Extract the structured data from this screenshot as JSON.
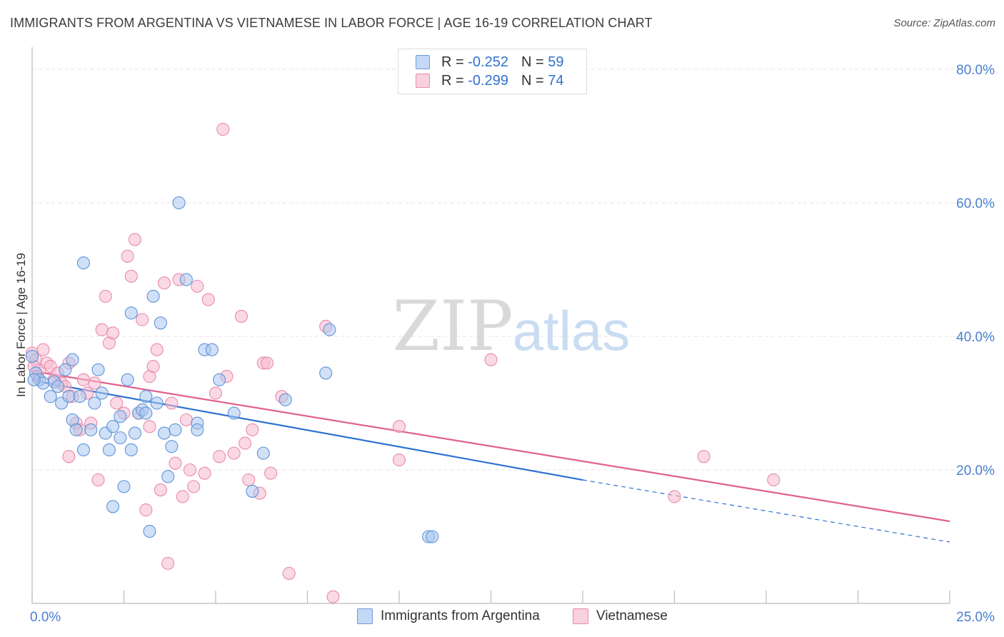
{
  "title": "IMMIGRANTS FROM ARGENTINA VS VIETNAMESE IN LABOR FORCE | AGE 16-19 CORRELATION CHART",
  "source": "Source: ZipAtlas.com",
  "watermark": {
    "zip": "ZIP",
    "atlas": "atlas"
  },
  "legend": {
    "argentina": {
      "r_label": "R =",
      "r_value": "-0.252",
      "n_label": "N =",
      "n_value": "59"
    },
    "vietnamese": {
      "r_label": "R =",
      "r_value": "-0.299",
      "n_label": "N =",
      "n_value": "74"
    }
  },
  "colors": {
    "argentina_fill": "#a9c7ee",
    "argentina_stroke": "#5f93d8",
    "argentina_line": "#2e72d2",
    "vietnamese_fill": "#f5b9cf",
    "vietnamese_stroke": "#e98aab",
    "vietnamese_line": "#e0608f",
    "axis_label": "#4a7fd0",
    "grid": "#e3e3e3"
  },
  "chart_data": {
    "type": "scatter",
    "title": "IMMIGRANTS FROM ARGENTINA VS VIETNAMESE IN LABOR FORCE | AGE 16-19 CORRELATION CHART",
    "xlabel": "",
    "ylabel": "In Labor Force | Age 16-19",
    "xlim": [
      0,
      25
    ],
    "ylim": [
      0,
      83
    ],
    "x_tick_labels": [
      "0.0%",
      "25.0%"
    ],
    "y_ticks": [
      20,
      40,
      60,
      80
    ],
    "y_tick_labels": [
      "20.0%",
      "40.0%",
      "60.0%",
      "80.0%"
    ],
    "grid": true,
    "legend_position": "bottom",
    "series": [
      {
        "name": "Immigrants from Argentina",
        "r": -0.252,
        "n": 59,
        "trend": {
          "x0": 0,
          "y0": 33.4,
          "x1": 15,
          "y1": 18.5,
          "dashed_to_x": 25,
          "dashed_to_y": 9.2
        },
        "points": [
          [
            0.1,
            34.5
          ],
          [
            0.2,
            33.5
          ],
          [
            0.3,
            33.0
          ],
          [
            0.5,
            31.0
          ],
          [
            0.6,
            33.2
          ],
          [
            0.7,
            32.5
          ],
          [
            0.8,
            30.0
          ],
          [
            0.9,
            35.0
          ],
          [
            1.0,
            31.0
          ],
          [
            1.1,
            36.5
          ],
          [
            1.1,
            27.5
          ],
          [
            1.2,
            26.0
          ],
          [
            1.3,
            31.0
          ],
          [
            1.4,
            23.0
          ],
          [
            1.4,
            51.0
          ],
          [
            1.6,
            26.0
          ],
          [
            1.7,
            30.0
          ],
          [
            1.8,
            35.0
          ],
          [
            1.9,
            31.5
          ],
          [
            2.0,
            25.5
          ],
          [
            2.1,
            23.0
          ],
          [
            2.2,
            26.5
          ],
          [
            2.2,
            14.5
          ],
          [
            2.4,
            24.8
          ],
          [
            2.4,
            28.0
          ],
          [
            2.5,
            17.5
          ],
          [
            2.6,
            33.5
          ],
          [
            2.7,
            23.0
          ],
          [
            2.7,
            43.5
          ],
          [
            2.8,
            25.5
          ],
          [
            2.9,
            28.5
          ],
          [
            3.0,
            29.0
          ],
          [
            3.1,
            31.0
          ],
          [
            3.1,
            28.5
          ],
          [
            3.2,
            10.8
          ],
          [
            3.3,
            46.0
          ],
          [
            3.4,
            30.0
          ],
          [
            3.5,
            42.0
          ],
          [
            3.6,
            25.5
          ],
          [
            3.7,
            19.0
          ],
          [
            3.8,
            23.5
          ],
          [
            3.9,
            26.0
          ],
          [
            4.0,
            60.0
          ],
          [
            4.2,
            48.5
          ],
          [
            4.5,
            27.0
          ],
          [
            4.5,
            26.0
          ],
          [
            4.7,
            38.0
          ],
          [
            4.9,
            38.0
          ],
          [
            5.1,
            33.5
          ],
          [
            5.5,
            28.5
          ],
          [
            6.0,
            16.8
          ],
          [
            6.3,
            22.5
          ],
          [
            6.9,
            30.5
          ],
          [
            8.0,
            34.5
          ],
          [
            8.1,
            41.0
          ],
          [
            10.8,
            10.0
          ],
          [
            10.9,
            10.0
          ],
          [
            0.0,
            37.0
          ],
          [
            0.05,
            33.5
          ]
        ]
      },
      {
        "name": "Vietnamese",
        "r": -0.299,
        "n": 74,
        "trend": {
          "x0": 0,
          "y0": 34.8,
          "x1": 25,
          "y1": 12.3
        },
        "points": [
          [
            0.0,
            37.5
          ],
          [
            0.1,
            36.5
          ],
          [
            0.2,
            35.0
          ],
          [
            0.3,
            38.0
          ],
          [
            0.4,
            36.0
          ],
          [
            0.5,
            35.5
          ],
          [
            0.6,
            33.5
          ],
          [
            0.7,
            34.5
          ],
          [
            0.8,
            33.0
          ],
          [
            0.9,
            32.5
          ],
          [
            1.0,
            22.0
          ],
          [
            1.0,
            36.0
          ],
          [
            1.1,
            31.0
          ],
          [
            1.2,
            27.0
          ],
          [
            1.3,
            26.0
          ],
          [
            1.4,
            33.5
          ],
          [
            1.5,
            31.5
          ],
          [
            1.6,
            27.0
          ],
          [
            1.7,
            33.0
          ],
          [
            1.8,
            18.5
          ],
          [
            1.9,
            41.0
          ],
          [
            2.0,
            46.0
          ],
          [
            2.1,
            39.0
          ],
          [
            2.2,
            40.5
          ],
          [
            2.3,
            30.0
          ],
          [
            2.5,
            28.5
          ],
          [
            2.6,
            52.0
          ],
          [
            2.7,
            49.0
          ],
          [
            2.8,
            54.5
          ],
          [
            2.9,
            28.5
          ],
          [
            3.0,
            42.5
          ],
          [
            3.1,
            14.0
          ],
          [
            3.2,
            26.5
          ],
          [
            3.2,
            34.0
          ],
          [
            3.3,
            35.5
          ],
          [
            3.4,
            38.0
          ],
          [
            3.5,
            17.0
          ],
          [
            3.6,
            48.0
          ],
          [
            3.7,
            6.0
          ],
          [
            3.8,
            30.0
          ],
          [
            3.9,
            21.0
          ],
          [
            4.0,
            48.5
          ],
          [
            4.1,
            16.0
          ],
          [
            4.2,
            27.5
          ],
          [
            4.3,
            20.0
          ],
          [
            4.4,
            17.5
          ],
          [
            4.5,
            47.5
          ],
          [
            4.7,
            19.5
          ],
          [
            4.8,
            45.5
          ],
          [
            5.0,
            31.5
          ],
          [
            5.1,
            22.0
          ],
          [
            5.2,
            71.0
          ],
          [
            5.3,
            34.0
          ],
          [
            5.5,
            22.5
          ],
          [
            5.7,
            43.0
          ],
          [
            5.8,
            24.0
          ],
          [
            5.9,
            18.5
          ],
          [
            6.0,
            26.0
          ],
          [
            6.2,
            16.5
          ],
          [
            6.3,
            36.0
          ],
          [
            6.4,
            36.0
          ],
          [
            6.5,
            19.5
          ],
          [
            6.8,
            31.0
          ],
          [
            7.0,
            4.5
          ],
          [
            8.0,
            41.5
          ],
          [
            8.2,
            1.0
          ],
          [
            10.0,
            26.5
          ],
          [
            10.0,
            21.5
          ],
          [
            12.5,
            36.5
          ],
          [
            17.5,
            16.0
          ],
          [
            18.3,
            22.0
          ],
          [
            20.2,
            18.5
          ],
          [
            0.05,
            35.5
          ],
          [
            0.15,
            34.0
          ]
        ]
      }
    ]
  },
  "bottom_legend": {
    "argentina": "Immigrants from Argentina",
    "vietnamese": "Vietnamese"
  }
}
